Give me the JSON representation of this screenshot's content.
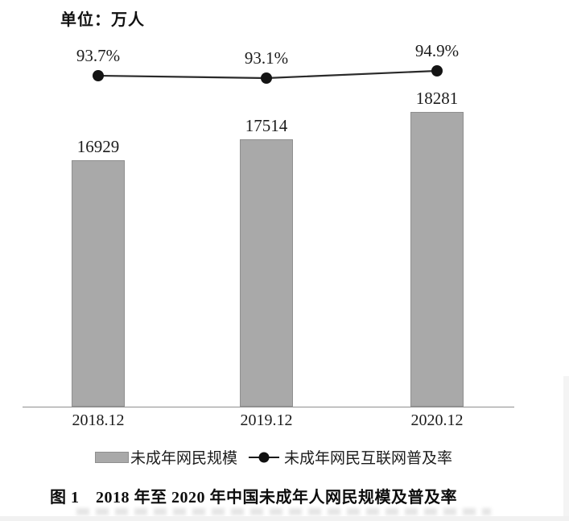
{
  "page": {
    "unit_label": "单位：万人",
    "caption": "图 1　2018 年至 2020 年中国未成年人网民规模及普及率"
  },
  "legend": {
    "bar_label": "未成年网民规模",
    "line_label": "未成年网民互联网普及率"
  },
  "chart_data": {
    "type": "bar",
    "subtype": "bar-line-combo",
    "title": "图 1　2018 年至 2020 年中国未成年人网民规模及普及率",
    "unit_note": "单位：万人",
    "categories": [
      "2018.12",
      "2019.12",
      "2020.12"
    ],
    "series": [
      {
        "name": "未成年网民规模",
        "type": "bar",
        "unit": "万人",
        "values": [
          16929,
          17514,
          18281
        ],
        "data_labels": [
          "16929",
          "17514",
          "18281"
        ],
        "color": "#a9a9a9",
        "border_color": "#8f8f8f"
      },
      {
        "name": "未成年网民互联网普及率",
        "type": "line",
        "unit": "%",
        "values": [
          93.7,
          93.1,
          94.9
        ],
        "data_labels": [
          "93.7%",
          "93.1%",
          "94.9%"
        ],
        "color": "#1a1a1a"
      }
    ],
    "y_axis_visible": false,
    "grid": false,
    "legend_position": "bottom"
  }
}
